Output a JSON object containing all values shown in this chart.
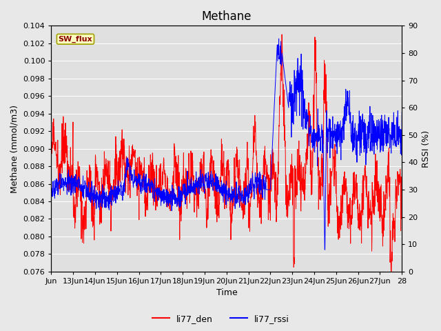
{
  "title": "Methane",
  "ylabel_left": "Methane (mmol/m3)",
  "ylabel_right": "RSSI (%)",
  "xlabel": "Time",
  "ylim_left": [
    0.076,
    0.104
  ],
  "ylim_right": [
    0,
    90
  ],
  "xlim": [
    0,
    16
  ],
  "x_tick_labels": [
    "Jun",
    "13Jun",
    "14Jun",
    "15Jun",
    "16Jun",
    "17Jun",
    "18Jun",
    "19Jun",
    "20Jun",
    "21Jun",
    "22Jun",
    "23Jun",
    "24Jun",
    "25Jun",
    "26Jun",
    "27Jun",
    "28"
  ],
  "x_tick_positions": [
    0,
    1,
    2,
    3,
    4,
    5,
    6,
    7,
    8,
    9,
    10,
    11,
    12,
    13,
    14,
    15,
    16
  ],
  "annotation_text": "SW_flux",
  "annotation_bg": "#ffffc0",
  "annotation_border": "#a0a000",
  "annotation_text_color": "#8B0000",
  "bg_color": "#e8e8e8",
  "plot_bg_color": "#e0e0e0",
  "line1_color": "red",
  "line2_color": "blue",
  "legend_label1": "li77_den",
  "legend_label2": "li77_rssi",
  "title_fontsize": 12,
  "label_fontsize": 9,
  "tick_fontsize": 8
}
